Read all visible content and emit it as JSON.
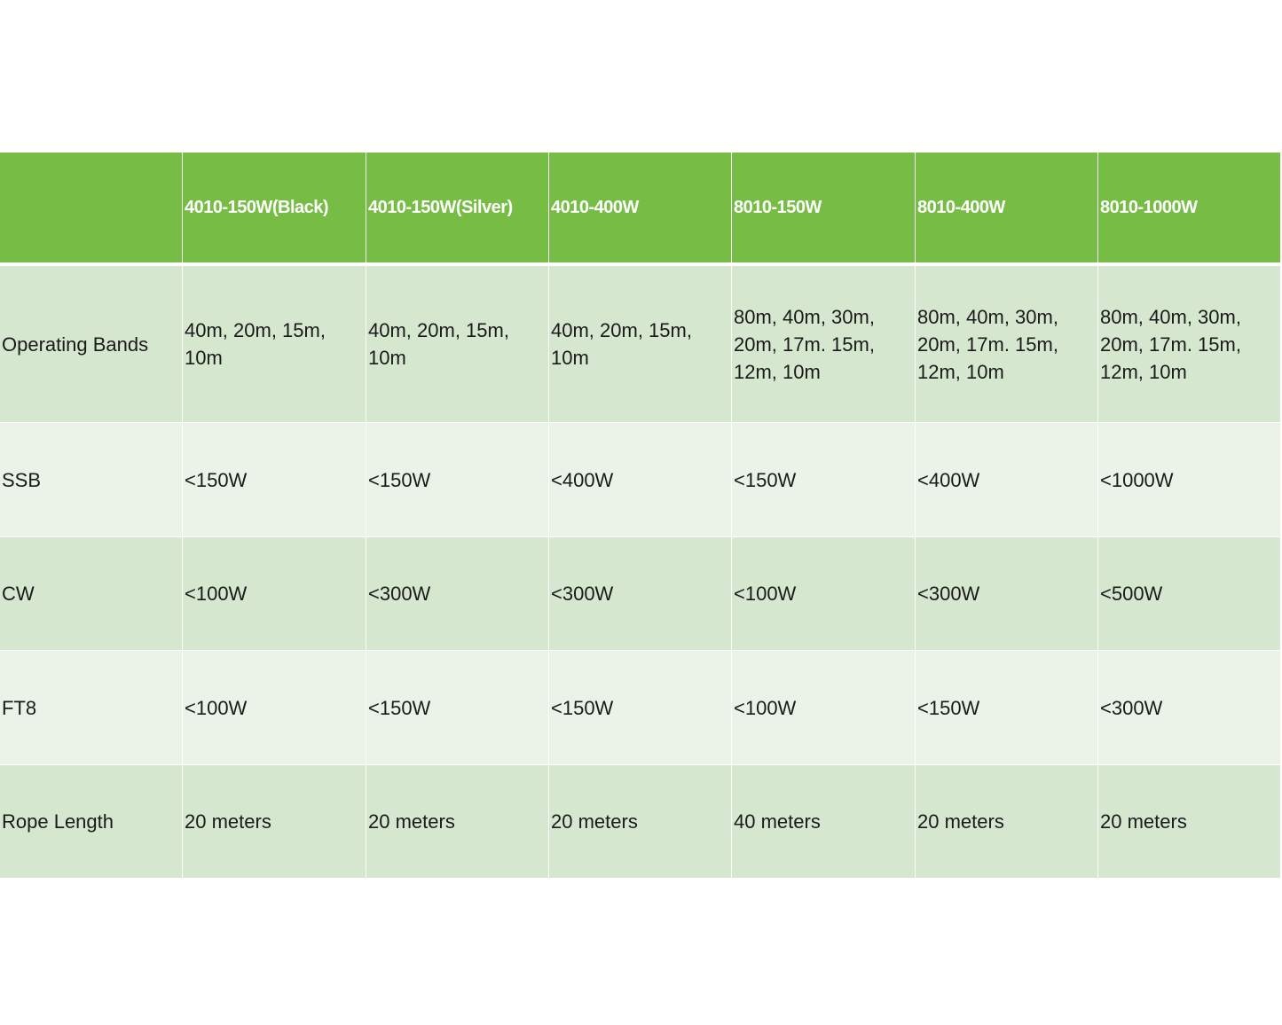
{
  "table": {
    "columns": [
      "4010-150W(Black)",
      "4010-150W(Silver)",
      "4010-400W",
      "8010-150W",
      "8010-400W",
      "8010-1000W"
    ],
    "rows": [
      {
        "label": "Operating Bands",
        "cells": [
          "40m, 20m, 15m, 10m",
          "40m, 20m, 15m, 10m",
          "40m, 20m, 15m, 10m",
          "80m, 40m, 30m, 20m, 17m. 15m, 12m, 10m",
          "80m, 40m, 30m, 20m, 17m. 15m, 12m, 10m",
          "80m, 40m, 30m, 20m, 17m. 15m, 12m, 10m"
        ]
      },
      {
        "label": "SSB",
        "cells": [
          "<150W",
          "<150W",
          "<400W",
          "<150W",
          "<400W",
          "<1000W"
        ]
      },
      {
        "label": "CW",
        "cells": [
          "<100W",
          "<300W",
          "<300W",
          "<100W",
          "<300W",
          "<500W"
        ]
      },
      {
        "label": "FT8",
        "cells": [
          "<100W",
          "<150W",
          "<150W",
          "<100W",
          "<150W",
          "<300W"
        ]
      },
      {
        "label": "Rope Length",
        "cells": [
          "20 meters",
          "20 meters",
          "20 meters",
          "40 meters",
          "20 meters",
          "20 meters"
        ]
      }
    ]
  }
}
